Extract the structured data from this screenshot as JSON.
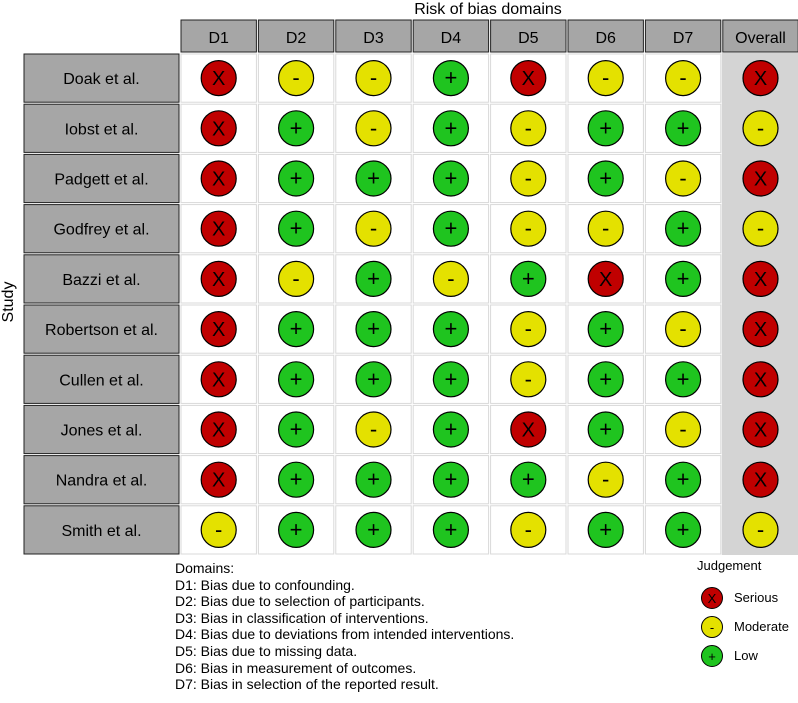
{
  "chart_data": {
    "type": "table",
    "title": "Risk of bias domains",
    "ylabel": "Study",
    "columns": [
      "D1",
      "D2",
      "D3",
      "D4",
      "D5",
      "D6",
      "D7",
      "Overall"
    ],
    "rows": [
      {
        "study": "Doak et al.",
        "judgements": [
          "X",
          "-",
          "-",
          "+",
          "X",
          "-",
          "-",
          "X"
        ]
      },
      {
        "study": "Iobst et al.",
        "judgements": [
          "X",
          "+",
          "-",
          "+",
          "-",
          "+",
          "+",
          "-"
        ]
      },
      {
        "study": "Padgett et al.",
        "judgements": [
          "X",
          "+",
          "+",
          "+",
          "-",
          "+",
          "-",
          "X"
        ]
      },
      {
        "study": "Godfrey et al.",
        "judgements": [
          "X",
          "+",
          "-",
          "+",
          "-",
          "-",
          "+",
          "-"
        ]
      },
      {
        "study": "Bazzi et al.",
        "judgements": [
          "X",
          "-",
          "+",
          "-",
          "+",
          "X",
          "+",
          "X"
        ]
      },
      {
        "study": "Robertson et al.",
        "judgements": [
          "X",
          "+",
          "+",
          "+",
          "-",
          "+",
          "-",
          "X"
        ]
      },
      {
        "study": "Cullen et al.",
        "judgements": [
          "X",
          "+",
          "+",
          "+",
          "-",
          "+",
          "+",
          "X"
        ]
      },
      {
        "study": "Jones et al.",
        "judgements": [
          "X",
          "+",
          "-",
          "+",
          "X",
          "+",
          "-",
          "X"
        ]
      },
      {
        "study": "Nandra et al.",
        "judgements": [
          "X",
          "+",
          "+",
          "+",
          "+",
          "-",
          "+",
          "X"
        ]
      },
      {
        "study": "Smith et al.",
        "judgements": [
          "-",
          "+",
          "+",
          "+",
          "-",
          "+",
          "+",
          "-"
        ]
      }
    ],
    "judgement_colors": {
      "X": "#c00000",
      "-": "#e4e100",
      "+": "#1fc41f"
    },
    "legend": {
      "title": "Judgement",
      "items": [
        {
          "symbol": "X",
          "label": "Serious"
        },
        {
          "symbol": "-",
          "label": "Moderate"
        },
        {
          "symbol": "+",
          "label": "Low"
        }
      ]
    }
  },
  "domains_legend": {
    "heading": "Domains:",
    "items": [
      "D1: Bias due to confounding.",
      "D2: Bias due to selection of participants.",
      "D3: Bias in classification of interventions.",
      "D4: Bias due to deviations from intended interventions.",
      "D5: Bias due to missing data.",
      "D6: Bias in measurement of outcomes.",
      "D7: Bias in selection of the reported result."
    ]
  },
  "colors": {
    "header_bg": "#a6a6a6",
    "overall_bg": "#d4d4d4",
    "cell_bg": "#ffffff",
    "grid": "#d9d9d9"
  }
}
